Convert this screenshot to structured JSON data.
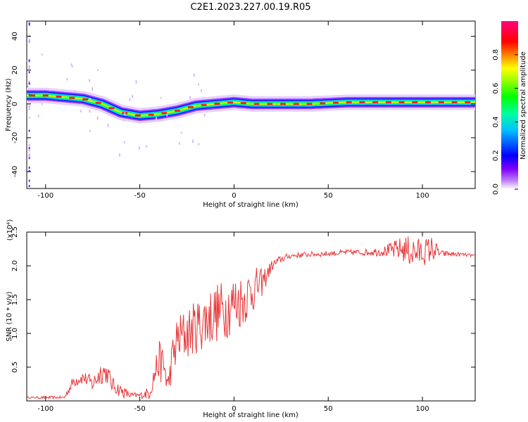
{
  "figure_title": "C2E1.2023.227.00.19.R05",
  "chart_data": [
    {
      "type": "heatmap",
      "xlabel": "Height of straight line (km)",
      "ylabel": "Frequency (Hz)",
      "xlim": [
        -110,
        128
      ],
      "ylim": [
        -50,
        49
      ],
      "xticks": [
        -100,
        -50,
        0,
        50,
        100
      ],
      "yticks": [
        -40,
        -20,
        0,
        20,
        40
      ],
      "colorbar": {
        "label": "Normalized spectral amplitude",
        "range": [
          0,
          1
        ],
        "ticks": [
          0.0,
          0.2,
          0.4,
          0.6,
          0.8
        ],
        "colors": [
          "#ffffff",
          "#8000ff",
          "#0000ff",
          "#00ffff",
          "#00ff00",
          "#ffff00",
          "#ff0000",
          "#ff0080"
        ]
      },
      "ridge": {
        "x": [
          -108,
          -100,
          -90,
          -80,
          -70,
          -60,
          -50,
          -40,
          -30,
          -20,
          -10,
          0,
          10,
          20,
          40,
          60,
          80,
          95,
          105,
          115,
          128
        ],
        "y": [
          5,
          5,
          4,
          3,
          0,
          -5,
          -7,
          -6,
          -4,
          -1,
          0,
          1,
          0,
          0,
          0,
          1,
          1,
          1,
          1,
          1,
          1
        ]
      }
    },
    {
      "type": "line",
      "xlabel": "Height of straight line (km)",
      "ylabel": "SNR (10 * v/v)",
      "scale_label": "(x10⁴)",
      "xlim": [
        -110,
        128
      ],
      "ylim": [
        0,
        2.5
      ],
      "xticks": [
        -100,
        -50,
        0,
        50,
        100
      ],
      "yticks": [
        0.5,
        1.0,
        1.5,
        2.0,
        2.5
      ],
      "series": [
        {
          "color": "#e8383a",
          "x": [
            -110,
            -100,
            -90,
            -85,
            -80,
            -75,
            -70,
            -67,
            -65,
            -60,
            -55,
            -50,
            -45,
            -40,
            -37,
            -35,
            -33,
            -30,
            -25,
            -20,
            -15,
            -10,
            -5,
            0,
            5,
            10,
            15,
            20,
            25,
            30,
            40,
            50,
            60,
            70,
            80,
            90,
            95,
            100,
            105,
            110,
            120,
            128
          ],
          "y": [
            0.05,
            0.05,
            0.05,
            0.3,
            0.35,
            0.25,
            0.45,
            0.4,
            0.25,
            0.15,
            0.08,
            0.08,
            0.12,
            0.6,
            0.5,
            0.2,
            0.6,
            0.9,
            1.0,
            1.1,
            1.2,
            1.3,
            1.35,
            1.45,
            1.5,
            1.65,
            1.75,
            2.0,
            2.1,
            2.15,
            2.17,
            2.18,
            2.2,
            2.2,
            2.22,
            2.25,
            2.2,
            2.2,
            2.25,
            2.18,
            2.17,
            2.15
          ],
          "noise": [
            0.01,
            0.02,
            0.02,
            0.1,
            0.1,
            0.12,
            0.2,
            0.15,
            0.12,
            0.1,
            0.05,
            0.04,
            0.1,
            0.3,
            0.3,
            0.2,
            0.3,
            0.4,
            0.4,
            0.4,
            0.45,
            0.45,
            0.45,
            0.45,
            0.4,
            0.35,
            0.2,
            0.08,
            0.06,
            0.04,
            0.04,
            0.04,
            0.04,
            0.05,
            0.08,
            0.2,
            0.25,
            0.2,
            0.2,
            0.05,
            0.03,
            0.02
          ]
        }
      ]
    }
  ]
}
